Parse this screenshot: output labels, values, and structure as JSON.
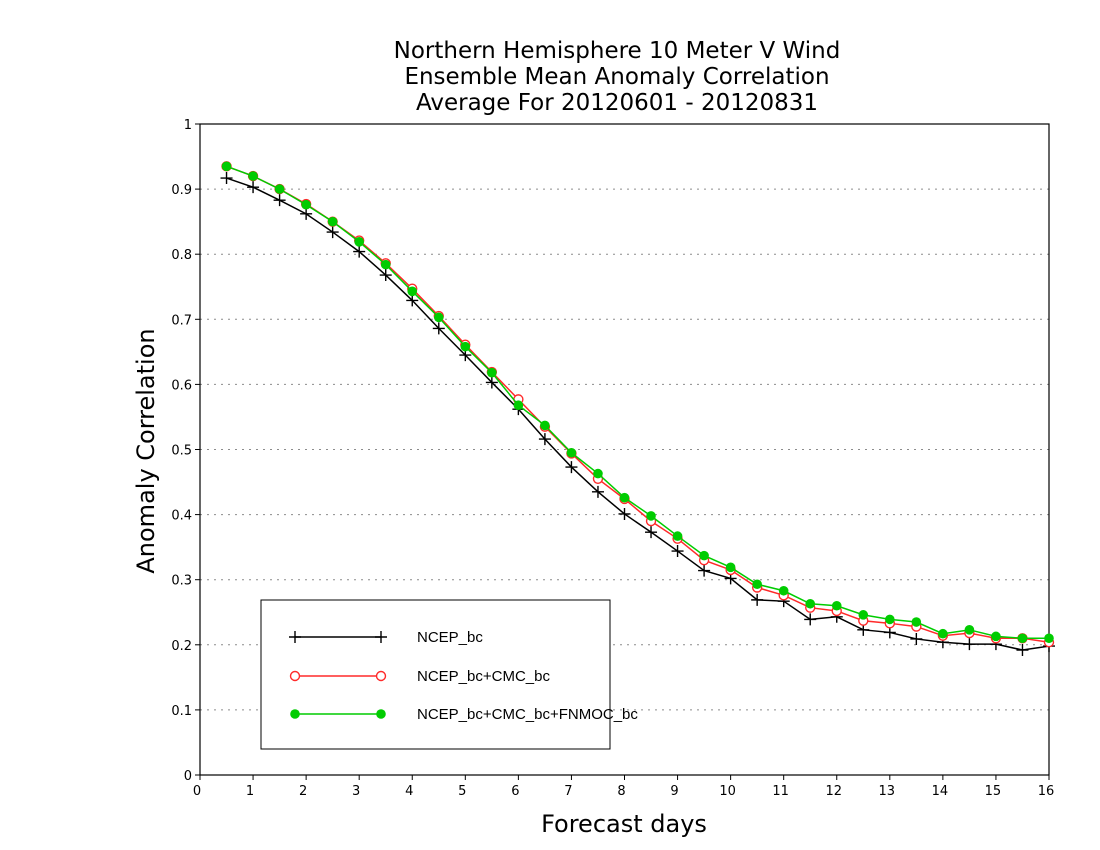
{
  "chart_data": {
    "type": "line",
    "title_lines": [
      "Northern Hemisphere 10 Meter V Wind",
      "Ensemble Mean Anomaly Correlation",
      "Average For 20120601 - 20120831"
    ],
    "xlabel": "Forecast days",
    "ylabel": "Anomaly Correlation",
    "xlim": [
      0,
      16
    ],
    "ylim": [
      0,
      1
    ],
    "x_ticks": [
      "0",
      "1",
      "2",
      "3",
      "4",
      "5",
      "6",
      "7",
      "8",
      "9",
      "10",
      "11",
      "12",
      "13",
      "14",
      "15",
      "16"
    ],
    "y_ticks": [
      "0",
      "0.1",
      "0.2",
      "0.3",
      "0.4",
      "0.5",
      "0.6",
      "0.7",
      "0.8",
      "0.9",
      "1"
    ],
    "grid": "horizontal dotted",
    "legend_position": "bottom-left",
    "x": [
      0.5,
      1,
      1.5,
      2,
      2.5,
      3,
      3.5,
      4,
      4.5,
      5,
      5.5,
      6,
      6.5,
      7,
      7.5,
      8,
      8.5,
      9,
      9.5,
      10,
      10.5,
      11,
      11.5,
      12,
      12.5,
      13,
      13.5,
      14,
      14.5,
      15,
      15.5,
      16
    ],
    "series": [
      {
        "name": "NCEP_bc",
        "color": "#000000",
        "marker": "plus",
        "values": [
          0.917,
          0.903,
          0.883,
          0.862,
          0.834,
          0.804,
          0.768,
          0.729,
          0.686,
          0.645,
          0.603,
          0.562,
          0.516,
          0.473,
          0.435,
          0.401,
          0.373,
          0.344,
          0.314,
          0.302,
          0.269,
          0.267,
          0.239,
          0.243,
          0.223,
          0.219,
          0.209,
          0.204,
          0.201,
          0.201,
          0.192,
          0.198
        ]
      },
      {
        "name": "NCEP_bc+CMC_bc",
        "color": "#ff2a2a",
        "marker": "open-circle",
        "values": [
          0.935,
          0.92,
          0.9,
          0.877,
          0.85,
          0.821,
          0.786,
          0.747,
          0.705,
          0.661,
          0.619,
          0.577,
          0.535,
          0.494,
          0.455,
          0.424,
          0.39,
          0.363,
          0.33,
          0.315,
          0.288,
          0.276,
          0.257,
          0.252,
          0.237,
          0.233,
          0.228,
          0.214,
          0.218,
          0.21,
          0.21,
          0.204
        ]
      },
      {
        "name": "NCEP_bc+CMC_bc+FNMOC_bc",
        "color": "#00cc00",
        "marker": "filled-circle",
        "values": [
          0.935,
          0.92,
          0.9,
          0.876,
          0.85,
          0.819,
          0.784,
          0.743,
          0.703,
          0.658,
          0.618,
          0.568,
          0.537,
          0.495,
          0.463,
          0.426,
          0.398,
          0.367,
          0.337,
          0.319,
          0.293,
          0.283,
          0.263,
          0.26,
          0.246,
          0.239,
          0.235,
          0.217,
          0.223,
          0.213,
          0.21,
          0.21
        ]
      }
    ]
  }
}
